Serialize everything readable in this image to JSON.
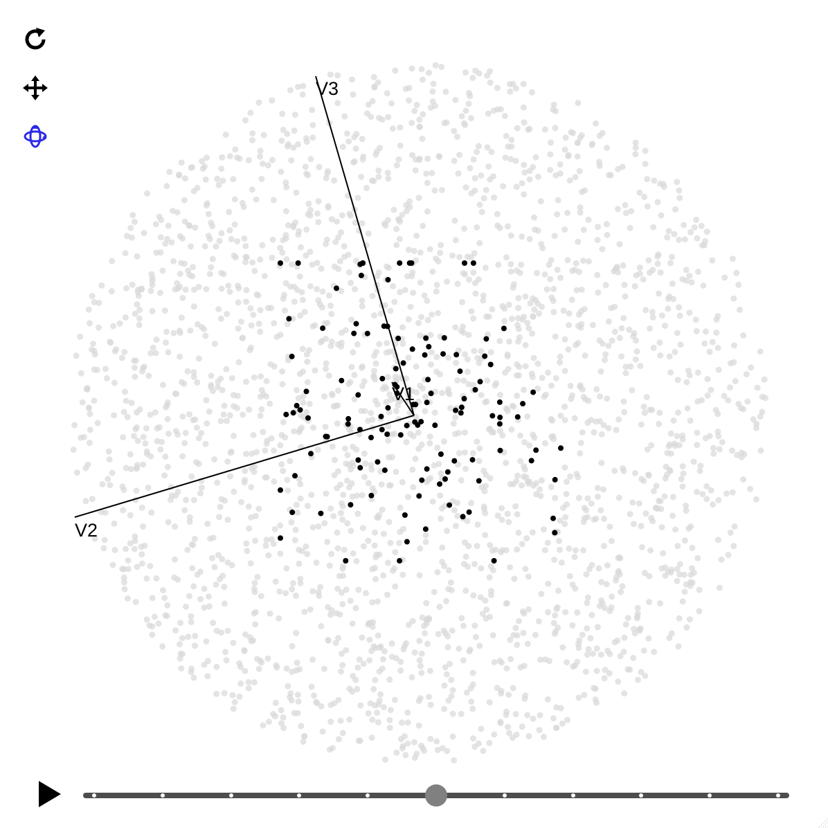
{
  "toolbar": {
    "icons": [
      "reset-icon",
      "pan-icon",
      "rotate-icon"
    ],
    "active_tool": "rotate",
    "active_color": "#2a2ae6"
  },
  "chart_data": {
    "type": "scatter",
    "description_axes": [
      "V1",
      "V2",
      "V3"
    ],
    "axes": [
      {
        "name": "V1",
        "label": "V1"
      },
      {
        "name": "V2",
        "label": "V2"
      },
      {
        "name": "V3",
        "label": "V3"
      }
    ],
    "series": [
      {
        "role": "background",
        "color": "#d9d9d9",
        "opacity": 0.7,
        "count": 2400,
        "shape": "sphere-surface"
      },
      {
        "role": "highlight",
        "color": "#000000",
        "count": 120,
        "shape": "cluster"
      }
    ]
  },
  "player": {
    "play_icon": "play-icon",
    "frame_count": 11,
    "current_position": 0.5
  }
}
